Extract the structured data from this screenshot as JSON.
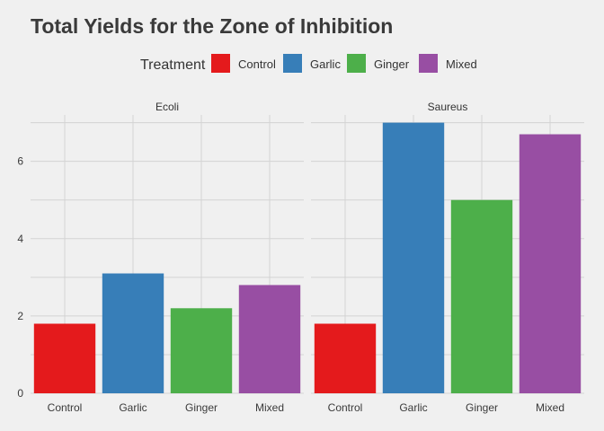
{
  "chart_data": {
    "type": "bar",
    "title": "Total Yields for the Zone of Inhibition",
    "xlabel": "",
    "ylabel": "",
    "legend": {
      "title": "Treatment",
      "placement": "top",
      "entries": [
        {
          "label": "Control",
          "color": "#e41a1c"
        },
        {
          "label": "Garlic",
          "color": "#377eb8"
        },
        {
          "label": "Ginger",
          "color": "#4daf4a"
        },
        {
          "label": "Mixed",
          "color": "#984ea3"
        }
      ]
    },
    "categories": [
      "Control",
      "Garlic",
      "Ginger",
      "Mixed"
    ],
    "ylim": [
      0,
      7.2
    ],
    "yticks": [
      0,
      2,
      4,
      6
    ],
    "grid": true,
    "facets": [
      {
        "name": "Ecoli",
        "values": [
          1.8,
          3.1,
          2.2,
          2.8
        ]
      },
      {
        "name": "Saureus",
        "values": [
          1.8,
          7.0,
          5.0,
          6.7
        ]
      }
    ]
  }
}
